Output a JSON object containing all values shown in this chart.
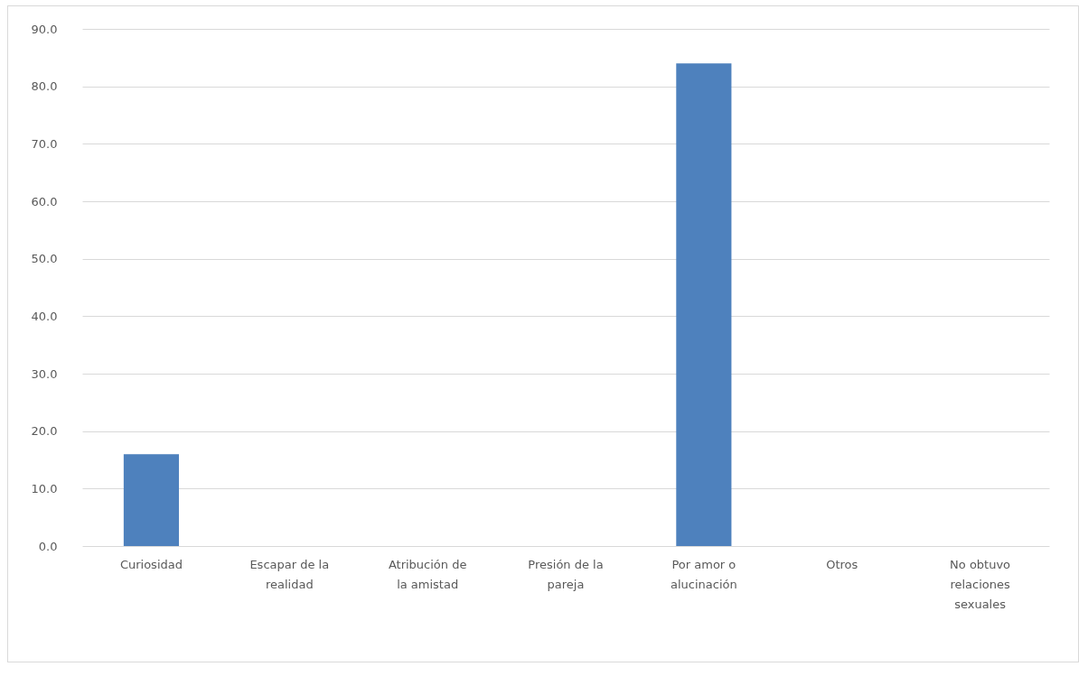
{
  "chart_data": {
    "type": "bar",
    "categories": [
      "Curiosidad",
      "Escapar de la realidad",
      "Atribución de la amistad",
      "Presión de la pareja",
      "Por amor o alucinación",
      "Otros",
      "No obtuvo relaciones sexuales"
    ],
    "values": [
      16,
      0,
      0,
      0,
      84,
      0,
      0
    ],
    "color": "#4e81bd",
    "ylim": [
      0,
      90
    ],
    "yticks": [
      {
        "value": 0,
        "label": "0.0"
      },
      {
        "value": 10,
        "label": "10.0"
      },
      {
        "value": 20,
        "label": "20.0"
      },
      {
        "value": 30,
        "label": "30.0"
      },
      {
        "value": 40,
        "label": "40.0"
      },
      {
        "value": 50,
        "label": "50.0"
      },
      {
        "value": 60,
        "label": "60.0"
      },
      {
        "value": 70,
        "label": "70.0"
      },
      {
        "value": 80,
        "label": "80.0"
      },
      {
        "value": 90,
        "label": "90.0"
      }
    ],
    "grid": "y"
  }
}
